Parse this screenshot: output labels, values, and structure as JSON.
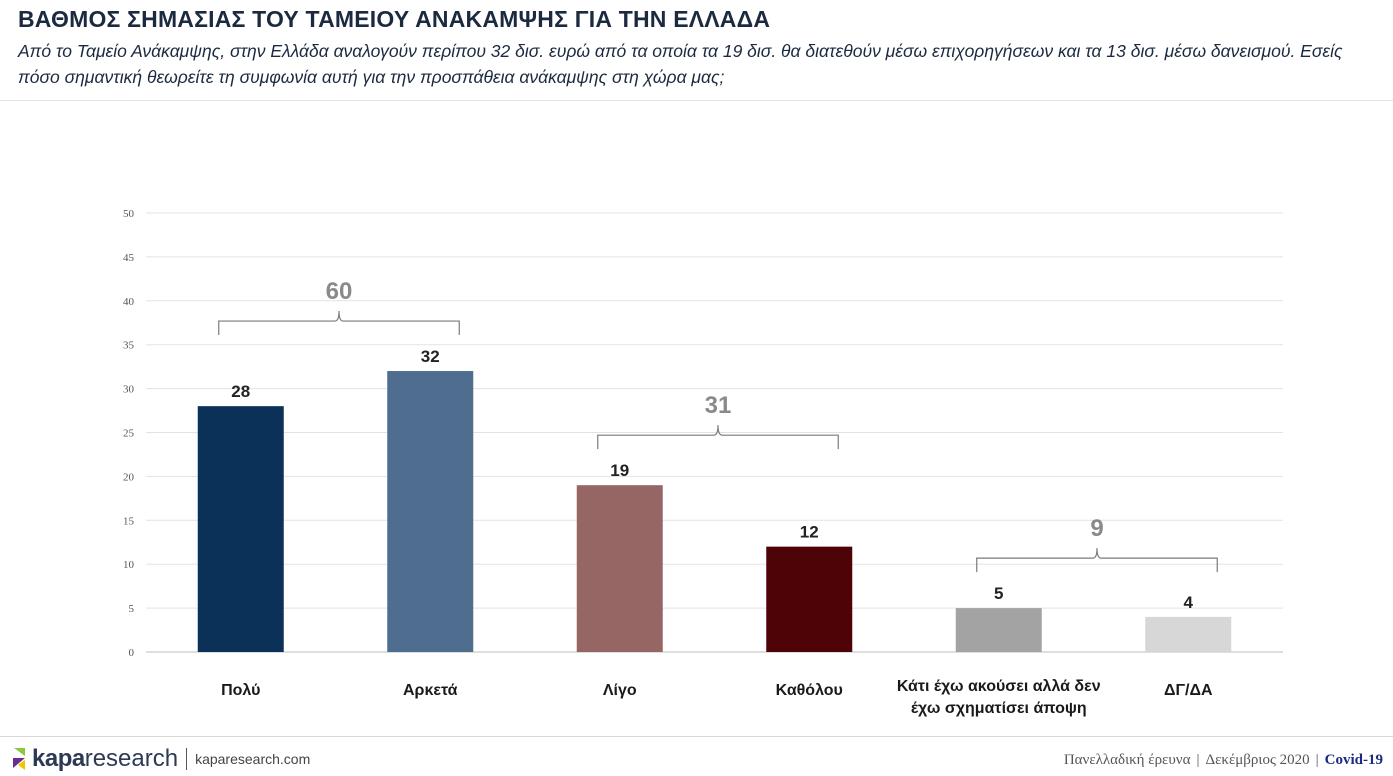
{
  "header": {
    "title": "ΒΑΘΜΟΣ ΣΗΜΑΣΙΑΣ ΤΟΥ ΤΑΜΕΙΟΥ ΑΝΑΚΑΜΨΗΣ ΓΙΑ ΤΗΝ ΕΛΛΑΔΑ",
    "subtitle": "Από το Ταμείο Ανάκαμψης, στην Ελλάδα αναλογούν περίπου 32 δισ. ευρώ από τα οποία τα 19 δισ. θα διατεθούν μέσω επιχορηγήσεων και τα 13 δισ. μέσω δανεισμού. Εσείς πόσο σημαντική θεωρείτε τη συμφωνία αυτή για την προσπάθεια ανάκαμψης στη χώρα μας;"
  },
  "chart_data": {
    "type": "bar",
    "categories": [
      "Πολύ",
      "Αρκετά",
      "Λίγο",
      "Καθόλου",
      "Κάτι έχω ακούσει αλλά δεν έχω σχηματίσει άποψη",
      "ΔΓ/ΔΑ"
    ],
    "category_lines": [
      [
        "Πολύ"
      ],
      [
        "Αρκετά"
      ],
      [
        "Λίγο"
      ],
      [
        "Καθόλου"
      ],
      [
        "Κάτι έχω ακούσει αλλά δεν",
        "έχω σχηματίσει άποψη"
      ],
      [
        "ΔΓ/ΔΑ"
      ]
    ],
    "values": [
      28,
      32,
      19,
      12,
      5,
      4
    ],
    "colors": [
      "#0b3158",
      "#4f6d8e",
      "#956664",
      "#4e0306",
      "#a3a3a3",
      "#d7d7d7"
    ],
    "ylim": [
      0,
      50
    ],
    "yticks": [
      0,
      5,
      10,
      15,
      20,
      25,
      30,
      35,
      40,
      45,
      50
    ],
    "grid": true,
    "groups": [
      {
        "label": "60",
        "from": 0,
        "to": 1
      },
      {
        "label": "31",
        "from": 2,
        "to": 3
      },
      {
        "label": "9",
        "from": 4,
        "to": 5
      }
    ]
  },
  "footer": {
    "logo_bold": "kapa",
    "logo_light": "research",
    "site": "kaparesearch.com",
    "survey": "Πανελλαδική έρευνα",
    "date": "Δεκέμβριος 2020",
    "tag": "Covid-19",
    "colors": {
      "logo_green": "#8dc63f",
      "logo_purple": "#6b2c8f",
      "logo_yellow": "#f2c500"
    }
  }
}
